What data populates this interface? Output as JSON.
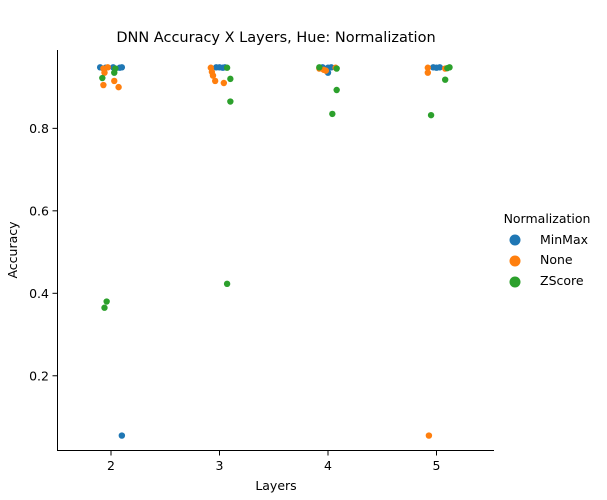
{
  "chart_data": {
    "type": "scatter",
    "title": "DNN Accuracy X Layers, Hue: Normalization",
    "xlabel": "Layers",
    "ylabel": "Accuracy",
    "categories": [
      "2",
      "3",
      "4",
      "5"
    ],
    "yticks": [
      "0.2",
      "0.4",
      "0.6",
      "0.8"
    ],
    "ylim": [
      0.02,
      0.99
    ],
    "grid": false,
    "legend": {
      "title": "Normalization",
      "placement": "right",
      "entries": [
        {
          "name": "MinMax",
          "color": "#1f77b4"
        },
        {
          "name": "None",
          "color": "#ff7f0e"
        },
        {
          "name": "ZScore",
          "color": "#2ca02c"
        }
      ]
    },
    "series": [
      {
        "name": "MinMax",
        "color": "#1f77b4",
        "points": [
          {
            "x": "2",
            "y": 0.948,
            "jitter": -0.1
          },
          {
            "x": "2",
            "y": 0.947,
            "jitter": -0.05
          },
          {
            "x": "2",
            "y": 0.948,
            "jitter": 0.02
          },
          {
            "x": "2",
            "y": 0.947,
            "jitter": 0.08
          },
          {
            "x": "2",
            "y": 0.948,
            "jitter": 0.1
          },
          {
            "x": "2",
            "y": 0.055,
            "jitter": 0.1
          },
          {
            "x": "3",
            "y": 0.948,
            "jitter": -0.03
          },
          {
            "x": "3",
            "y": 0.948,
            "jitter": 0.0
          },
          {
            "x": "3",
            "y": 0.947,
            "jitter": 0.03
          },
          {
            "x": "3",
            "y": 0.948,
            "jitter": 0.05
          },
          {
            "x": "4",
            "y": 0.948,
            "jitter": -0.05
          },
          {
            "x": "4",
            "y": 0.947,
            "jitter": 0.0
          },
          {
            "x": "4",
            "y": 0.935,
            "jitter": 0.0
          },
          {
            "x": "4",
            "y": 0.948,
            "jitter": 0.03
          },
          {
            "x": "5",
            "y": 0.948,
            "jitter": -0.03
          },
          {
            "x": "5",
            "y": 0.947,
            "jitter": 0.0
          },
          {
            "x": "5",
            "y": 0.948,
            "jitter": 0.03
          }
        ]
      },
      {
        "name": "None",
        "color": "#ff7f0e",
        "points": [
          {
            "x": "2",
            "y": 0.945,
            "jitter": -0.07
          },
          {
            "x": "2",
            "y": 0.935,
            "jitter": -0.06
          },
          {
            "x": "2",
            "y": 0.905,
            "jitter": -0.07
          },
          {
            "x": "2",
            "y": 0.948,
            "jitter": -0.03
          },
          {
            "x": "2",
            "y": 0.915,
            "jitter": 0.03
          },
          {
            "x": "2",
            "y": 0.9,
            "jitter": 0.07
          },
          {
            "x": "3",
            "y": 0.947,
            "jitter": -0.08
          },
          {
            "x": "3",
            "y": 0.937,
            "jitter": -0.07
          },
          {
            "x": "3",
            "y": 0.928,
            "jitter": -0.06
          },
          {
            "x": "3",
            "y": 0.915,
            "jitter": -0.04
          },
          {
            "x": "3",
            "y": 0.91,
            "jitter": 0.04
          },
          {
            "x": "4",
            "y": 0.945,
            "jitter": -0.08
          },
          {
            "x": "4",
            "y": 0.942,
            "jitter": -0.04
          },
          {
            "x": "4",
            "y": 0.94,
            "jitter": -0.02
          },
          {
            "x": "4",
            "y": 0.947,
            "jitter": 0.07
          },
          {
            "x": "5",
            "y": 0.947,
            "jitter": -0.08
          },
          {
            "x": "5",
            "y": 0.935,
            "jitter": -0.08
          },
          {
            "x": "5",
            "y": 0.945,
            "jitter": 0.08
          },
          {
            "x": "5",
            "y": 0.055,
            "jitter": -0.07
          }
        ]
      },
      {
        "name": "ZScore",
        "color": "#2ca02c",
        "points": [
          {
            "x": "2",
            "y": 0.945,
            "jitter": 0.04
          },
          {
            "x": "2",
            "y": 0.935,
            "jitter": 0.03
          },
          {
            "x": "2",
            "y": 0.922,
            "jitter": -0.08
          },
          {
            "x": "2",
            "y": 0.38,
            "jitter": -0.04
          },
          {
            "x": "2",
            "y": 0.365,
            "jitter": -0.06
          },
          {
            "x": "3",
            "y": 0.947,
            "jitter": 0.07
          },
          {
            "x": "3",
            "y": 0.92,
            "jitter": 0.1
          },
          {
            "x": "3",
            "y": 0.865,
            "jitter": 0.1
          },
          {
            "x": "3",
            "y": 0.423,
            "jitter": 0.07
          },
          {
            "x": "4",
            "y": 0.948,
            "jitter": -0.08
          },
          {
            "x": "4",
            "y": 0.945,
            "jitter": 0.08
          },
          {
            "x": "4",
            "y": 0.893,
            "jitter": 0.08
          },
          {
            "x": "4",
            "y": 0.835,
            "jitter": 0.04
          },
          {
            "x": "5",
            "y": 0.948,
            "jitter": 0.12
          },
          {
            "x": "5",
            "y": 0.946,
            "jitter": 0.1
          },
          {
            "x": "5",
            "y": 0.918,
            "jitter": 0.08
          },
          {
            "x": "5",
            "y": 0.832,
            "jitter": -0.05
          }
        ]
      }
    ]
  }
}
